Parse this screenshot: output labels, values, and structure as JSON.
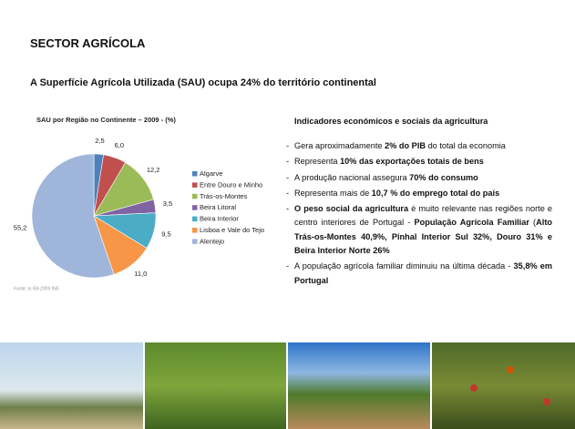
{
  "header": {
    "title": "SECTOR AGRÍCOLA",
    "subtitle": "A Superfície Agrícola Utilizada (SAU) ocupa 24% do território continental"
  },
  "chart_data": {
    "type": "pie",
    "title": "SAU por Região no Continente – 2009 - (%)",
    "categories": [
      "Algarve",
      "Entre Douro e Minho",
      "Trás-os-Montes",
      "Beira Litoral",
      "Beira Interior",
      "Lisboa e Vale do Tejo",
      "Alentejo"
    ],
    "values": [
      2.5,
      6.0,
      12.2,
      3.5,
      9.5,
      11.0,
      55.2
    ],
    "value_labels": [
      "2,5",
      "6,0",
      "12,2",
      "3,5",
      "9,5",
      "11,0",
      "55,2"
    ],
    "colors": [
      "#4f81bd",
      "#c0504d",
      "#9bbb59",
      "#8064a2",
      "#4bacc6",
      "#f79646",
      "#9fb5da"
    ],
    "legend": "right",
    "source": "Fonte: in RA 2009 INE"
  },
  "panel": {
    "heading": "Indicadores económicos e sociais da agricultura",
    "bullet_marker": "-",
    "bullets": [
      {
        "runs": [
          {
            "text": "Gera aproximadamente ",
            "bold": false
          },
          {
            "text": "2% do PIB",
            "bold": true
          },
          {
            "text": " do total da economia",
            "bold": false
          }
        ]
      },
      {
        "runs": [
          {
            "text": "Representa ",
            "bold": false
          },
          {
            "text": "10% das exportações totais de bens",
            "bold": true
          }
        ]
      },
      {
        "runs": [
          {
            "text": "A produção nacional assegura ",
            "bold": false
          },
          {
            "text": "70% do consumo",
            "bold": true
          }
        ]
      },
      {
        "runs": [
          {
            "text": "Representa mais de ",
            "bold": false
          },
          {
            "text": "10,7 % do emprego total do país",
            "bold": true
          }
        ]
      },
      {
        "runs": [
          {
            "text": "O peso social da agricultura",
            "bold": true
          },
          {
            "text": " é muito relevante nas regiões norte e centro interiores de Portugal - ",
            "bold": false
          },
          {
            "text": "População Agrícola Familiar",
            "bold": true
          },
          {
            "text": " (",
            "bold": false
          },
          {
            "text": "Alto Trás-os-Montes 40,9%, Pinhal Interior Sul 32%, Douro 31% e Beira Interior Norte 26%",
            "bold": true
          }
        ]
      },
      {
        "runs": [
          {
            "text": "A população agrícola familiar diminuiu na última década - ",
            "bold": false
          },
          {
            "text": "35,8% em Portugal",
            "bold": true
          }
        ]
      }
    ]
  }
}
